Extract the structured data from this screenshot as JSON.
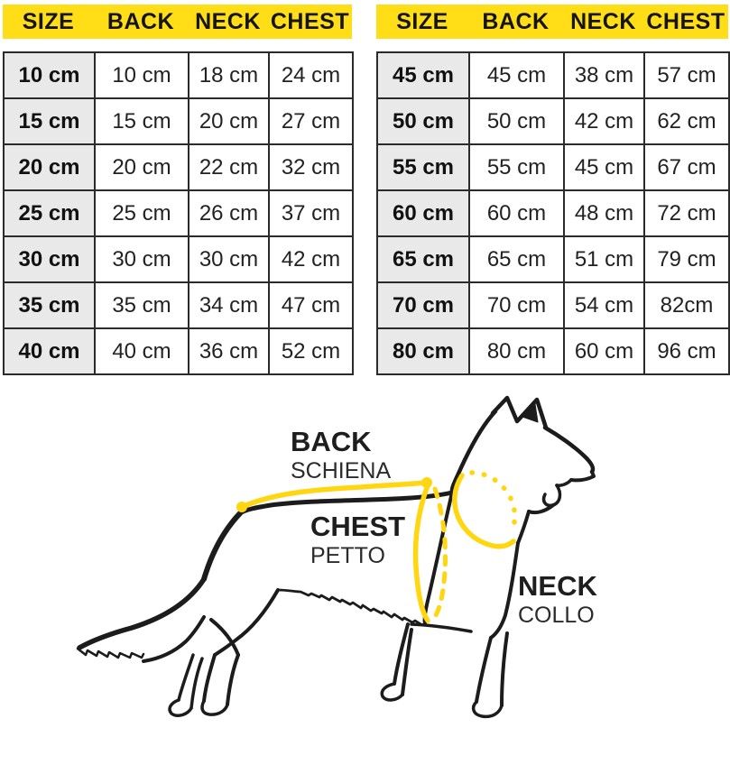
{
  "tables": [
    {
      "name": "small-sizes",
      "headers": [
        "SIZE",
        "BACK",
        "NECK",
        "CHEST"
      ],
      "rows": [
        [
          "10 cm",
          "10 cm",
          "18 cm",
          "24 cm"
        ],
        [
          "15 cm",
          "15 cm",
          "20 cm",
          "27 cm"
        ],
        [
          "20 cm",
          "20 cm",
          "22 cm",
          "32 cm"
        ],
        [
          "25 cm",
          "25 cm",
          "26 cm",
          "37 cm"
        ],
        [
          "30 cm",
          "30 cm",
          "30 cm",
          "42 cm"
        ],
        [
          "35 cm",
          "35 cm",
          "34 cm",
          "47 cm"
        ],
        [
          "40 cm",
          "40 cm",
          "36 cm",
          "52 cm"
        ]
      ]
    },
    {
      "name": "large-sizes",
      "headers": [
        "SIZE",
        "BACK",
        "NECK",
        "CHEST"
      ],
      "rows": [
        [
          "45 cm",
          "45 cm",
          "38 cm",
          "57 cm"
        ],
        [
          "50 cm",
          "50 cm",
          "42 cm",
          "62 cm"
        ],
        [
          "55 cm",
          "55 cm",
          "45 cm",
          "67 cm"
        ],
        [
          "60 cm",
          "60 cm",
          "48 cm",
          "72 cm"
        ],
        [
          "65 cm",
          "65 cm",
          "51 cm",
          "79 cm"
        ],
        [
          "70 cm",
          "70 cm",
          "54 cm",
          "82cm"
        ],
        [
          "80 cm",
          "80 cm",
          "60 cm",
          "96 cm"
        ]
      ]
    }
  ],
  "diagram": {
    "labels": {
      "back": {
        "en": "BACK",
        "it": "SCHIENA"
      },
      "chest": {
        "en": "CHEST",
        "it": "PETTO"
      },
      "neck": {
        "en": "NECK",
        "it": "COLLO"
      }
    }
  },
  "colors": {
    "header_yellow": "#ffde17",
    "measure_yellow": "#ffd60f",
    "row_gray": "#e9e9e9",
    "table_border": "#2b2b2b",
    "ink": "#1c1c1c"
  }
}
